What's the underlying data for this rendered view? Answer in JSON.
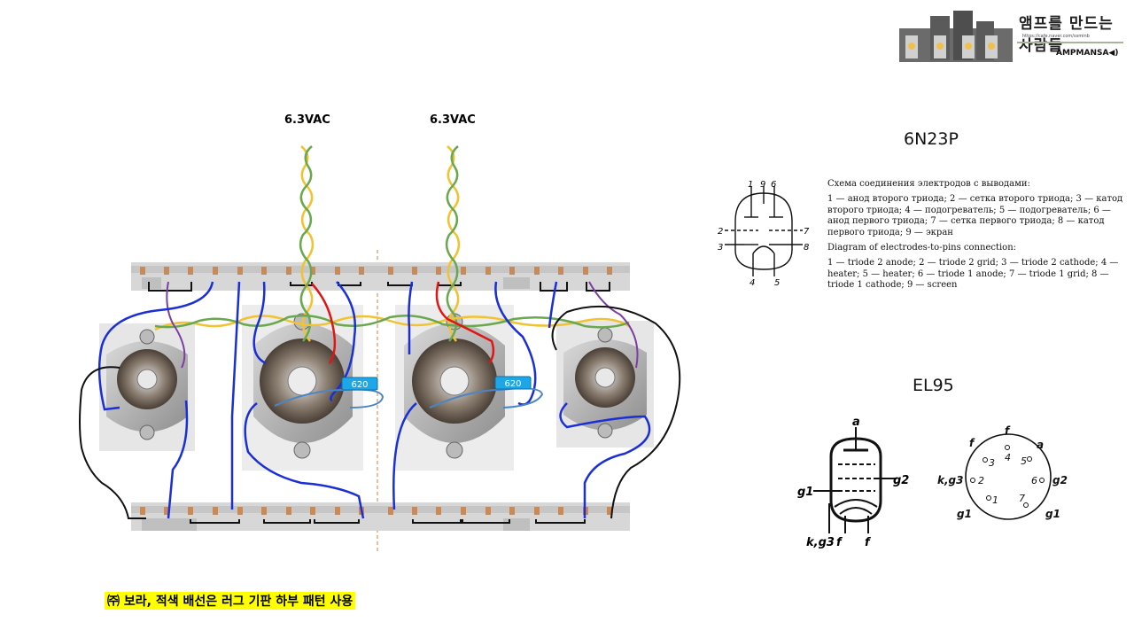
{
  "logo": {
    "title": "앰프를 만드는 사람들",
    "url": "https://cafe.naver.com/ssminb",
    "brand": "AMPMANSA◀)"
  },
  "labels": {
    "vac_left": "6.3VAC",
    "vac_right": "6.3VAC",
    "resistor_left": "620",
    "resistor_right": "620"
  },
  "tube_6n23p": {
    "name": "6N23P",
    "pins_top": [
      "1",
      "9",
      "6"
    ],
    "pin_left_2": "2",
    "pin_left_3": "3",
    "pin_right_7": "7",
    "pin_right_8": "8",
    "pin_bottom_4": "4",
    "pin_bottom_5": "5",
    "ru_heading": "Схема соединения электродов с выводами:",
    "ru_text": "1 — анод второго триода; 2 — сетка второго триода; 3 — катод второго триода; 4 — подогреватель; 5 — подогреватель; 6 — анод первого триода; 7 — сетка первого триода; 8 — катод первого триода; 9 — экран",
    "en_heading": "Diagram of electrodes-to-pins connection:",
    "en_text": "1 — triode 2 anode; 2 — triode 2 grid; 3 — triode 2 cathode; 4 — heater; 5 — heater; 6 — triode 1 anode; 7 — triode 1 grid; 8 — triode 1 cathode; 9 — screen"
  },
  "tube_el95": {
    "name": "EL95",
    "sym_a": "a",
    "sym_g2": "g2",
    "sym_g1": "g1",
    "sym_kg3": "k,g3",
    "sym_f1": "f",
    "sym_f2": "f",
    "pin_f_top_left": "f",
    "pin_f_top": "f",
    "pin_a": "a",
    "pin_3": "3",
    "pin_4": "4",
    "pin_5": "5",
    "pin_kg3": "k,g3",
    "pin_2": "2",
    "pin_6": "6",
    "pin_g2": "g2",
    "pin_1": "1",
    "pin_7": "7",
    "pin_g1_left": "g1",
    "pin_g1_right": "g1"
  },
  "note": "㈜ 보라, 적색 배선은 러그 기판 하부 패턴 사용",
  "colors": {
    "board": "#d7d7d7",
    "board_pad": "#c98a5a",
    "wire_blue": "#1a2fd6",
    "wire_black": "#111111",
    "wire_purple": "#7b3fa0",
    "wire_red": "#e01515",
    "heater_green": "#6aa84f",
    "heater_yellow": "#f1c232",
    "resistor": "#1ea7e8",
    "divider": "#e07a3a",
    "note_bg": "#ffff00"
  }
}
